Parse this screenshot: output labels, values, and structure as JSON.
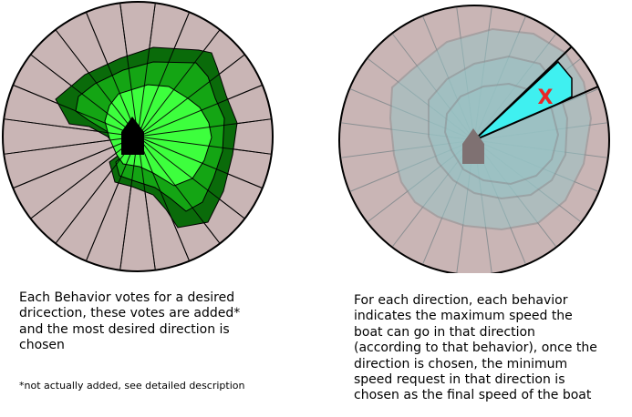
{
  "colors": {
    "background": "#ffffff",
    "sector_fill": "#c9b5b5",
    "sector_stroke": "#000000",
    "vote_dark": "#0a6b0a",
    "vote_mid": "#14a514",
    "vote_light": "#3dff3d",
    "boat_left": "#000000",
    "boat_right": "#7f7172",
    "speed_overlay": "#98c3c5",
    "speed_stroke": "#8a8f92",
    "chosen_sector": "#3ff0f0",
    "limit_mark": "#e82727"
  },
  "left_panel": {
    "caption": "Each Behavior votes for a desired\ndricection, these votes are added*\nand the most desired direction is\nchosen",
    "footnote": "*not actually added, see detailed description"
  },
  "right_panel": {
    "caption": "For each direction, each behavior\nindicates the maximum speed the\nboat can go in that direction\n(according to that behavior), once the\ndirection is chosen, the minimum\nspeed request in that direction is\nchosen as the final speed of the boat",
    "limit_mark": "X"
  }
}
